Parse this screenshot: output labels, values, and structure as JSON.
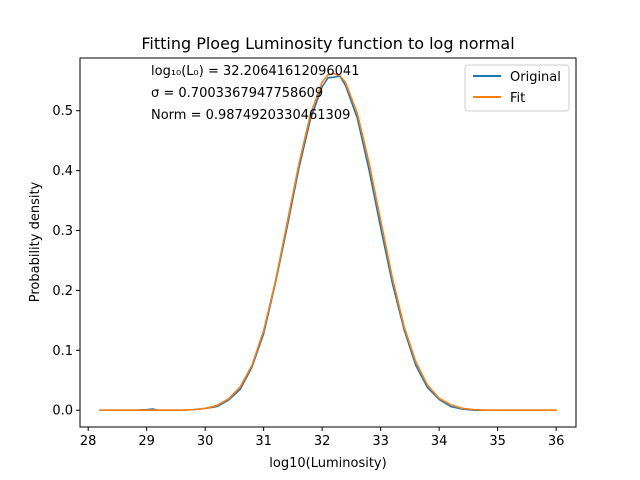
{
  "chart_data": {
    "type": "line",
    "title": "Fitting Ploeg Luminosity function to log normal",
    "xlabel": "log10(Luminosity)",
    "ylabel": "Probability density",
    "xlim": [
      27.86,
      36.34
    ],
    "ylim": [
      -0.028,
      0.588
    ],
    "xticks": [
      28,
      29,
      30,
      31,
      32,
      33,
      34,
      35,
      36
    ],
    "yticks": [
      0.0,
      0.1,
      0.2,
      0.3,
      0.4,
      0.5
    ],
    "ytick_labels": [
      "0.0",
      "0.1",
      "0.2",
      "0.3",
      "0.4",
      "0.5"
    ],
    "grid": false,
    "legend_position": "top-right",
    "annotations": [
      {
        "text": "log₁₀(L₀) = 32.20641612096041"
      },
      {
        "text": "σ = 0.7003367947758609"
      },
      {
        "text": "Norm  = 0.9874920330461309"
      }
    ],
    "series": [
      {
        "name": "Original",
        "color": "#1f77b4",
        "x": [
          28.2,
          28.4,
          28.6,
          28.8,
          29.0,
          29.1,
          29.2,
          29.4,
          29.6,
          29.8,
          30.0,
          30.2,
          30.4,
          30.6,
          30.8,
          31.0,
          31.2,
          31.4,
          31.6,
          31.8,
          32.0,
          32.1,
          32.2,
          32.3,
          32.4,
          32.6,
          32.8,
          33.0,
          33.2,
          33.4,
          33.6,
          33.8,
          34.0,
          34.2,
          34.4,
          34.6,
          34.8,
          35.0,
          35.2,
          35.4,
          35.6,
          35.8,
          36.0
        ],
        "y": [
          0.0,
          0.0,
          0.0,
          0.0,
          0.001,
          0.002,
          0.0,
          0.0,
          0.0,
          0.001,
          0.003,
          0.006,
          0.017,
          0.035,
          0.072,
          0.128,
          0.212,
          0.305,
          0.403,
          0.486,
          0.54,
          0.555,
          0.556,
          0.558,
          0.542,
          0.488,
          0.402,
          0.305,
          0.212,
          0.135,
          0.075,
          0.038,
          0.018,
          0.006,
          0.002,
          0.0,
          0.0,
          0.0,
          0.0,
          0.0,
          0.0,
          0.0,
          0.0
        ]
      },
      {
        "name": "Fit",
        "color": "#ff7f0e",
        "x": [
          28.2,
          28.4,
          28.6,
          28.8,
          29.0,
          29.2,
          29.4,
          29.6,
          29.8,
          30.0,
          30.2,
          30.4,
          30.6,
          30.8,
          31.0,
          31.2,
          31.4,
          31.6,
          31.8,
          32.0,
          32.1,
          32.2,
          32.3,
          32.4,
          32.6,
          32.8,
          33.0,
          33.2,
          33.4,
          33.6,
          33.8,
          34.0,
          34.2,
          34.4,
          34.6,
          34.8,
          35.0,
          35.2,
          35.4,
          35.6,
          35.8,
          36.0
        ],
        "y": [
          0.0,
          0.0,
          0.0,
          0.0,
          0.0,
          0.0,
          0.0,
          0.0,
          0.001,
          0.003,
          0.008,
          0.019,
          0.039,
          0.075,
          0.133,
          0.215,
          0.312,
          0.41,
          0.494,
          0.548,
          0.56,
          0.562,
          0.559,
          0.547,
          0.496,
          0.414,
          0.317,
          0.221,
          0.14,
          0.081,
          0.042,
          0.02,
          0.009,
          0.003,
          0.001,
          0.0,
          0.0,
          0.0,
          0.0,
          0.0,
          0.0,
          0.0
        ]
      }
    ]
  }
}
